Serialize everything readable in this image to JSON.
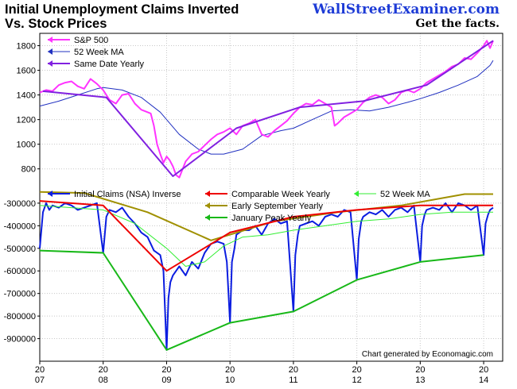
{
  "header": {
    "title_line1": "Initial Unemployment Claims Inverted",
    "title_line2": "Vs. Stock Prices",
    "brand": "WallStreetExaminer.com",
    "tagline": "Get the facts."
  },
  "footer": {
    "credit": "Chart generated by Economagic.com"
  },
  "x_ticks": [
    {
      "year": 2007,
      "top": "20",
      "bottom": "07"
    },
    {
      "year": 2008,
      "top": "20",
      "bottom": "08"
    },
    {
      "year": 2009,
      "top": "20",
      "bottom": "09"
    },
    {
      "year": 2010,
      "top": "20",
      "bottom": "10"
    },
    {
      "year": 2011,
      "top": "20",
      "bottom": "11"
    },
    {
      "year": 2012,
      "top": "20",
      "bottom": "12"
    },
    {
      "year": 2013,
      "top": "20",
      "bottom": "13"
    },
    {
      "year": 2014,
      "top": "20",
      "bottom": "14"
    }
  ],
  "chart_data": [
    {
      "type": "line",
      "ylim": [
        650,
        1900
      ],
      "xlim": [
        2007.0,
        2014.3
      ],
      "y_ticks": [
        "800",
        "1000",
        "1200",
        "1400",
        "1600",
        "1800"
      ],
      "y_tick_values": [
        800,
        1000,
        1200,
        1400,
        1600,
        1800
      ],
      "grid": true,
      "legend_position": "top-left",
      "series": [
        {
          "name": "S&P 500",
          "color": "#ff33ff",
          "x": [
            2007.0,
            2007.1,
            2007.2,
            2007.3,
            2007.4,
            2007.5,
            2007.6,
            2007.7,
            2007.8,
            2007.9,
            2008.0,
            2008.1,
            2008.2,
            2008.3,
            2008.4,
            2008.5,
            2008.6,
            2008.7,
            2008.75,
            2008.8,
            2008.85,
            2008.9,
            2008.95,
            2009.0,
            2009.05,
            2009.1,
            2009.15,
            2009.2,
            2009.3,
            2009.4,
            2009.5,
            2009.6,
            2009.7,
            2009.8,
            2009.9,
            2010.0,
            2010.1,
            2010.2,
            2010.3,
            2010.4,
            2010.5,
            2010.6,
            2010.7,
            2010.8,
            2010.9,
            2011.0,
            2011.1,
            2011.2,
            2011.3,
            2011.4,
            2011.5,
            2011.6,
            2011.65,
            2011.7,
            2011.8,
            2011.9,
            2012.0,
            2012.1,
            2012.2,
            2012.3,
            2012.4,
            2012.5,
            2012.6,
            2012.7,
            2012.8,
            2012.9,
            2013.0,
            2013.1,
            2013.2,
            2013.3,
            2013.4,
            2013.5,
            2013.6,
            2013.7,
            2013.8,
            2013.9,
            2014.0,
            2014.05,
            2014.1,
            2014.15
          ],
          "values": [
            1420,
            1440,
            1430,
            1480,
            1500,
            1510,
            1470,
            1450,
            1530,
            1490,
            1440,
            1360,
            1330,
            1400,
            1410,
            1330,
            1280,
            1260,
            1250,
            1150,
            1000,
            920,
            850,
            900,
            870,
            820,
            750,
            730,
            860,
            920,
            940,
            990,
            1040,
            1080,
            1100,
            1130,
            1080,
            1150,
            1170,
            1200,
            1080,
            1060,
            1110,
            1150,
            1190,
            1250,
            1300,
            1330,
            1320,
            1360,
            1330,
            1300,
            1150,
            1170,
            1220,
            1250,
            1280,
            1340,
            1380,
            1400,
            1380,
            1330,
            1360,
            1420,
            1440,
            1420,
            1450,
            1500,
            1530,
            1560,
            1590,
            1630,
            1650,
            1700,
            1690,
            1740,
            1800,
            1840,
            1780,
            1840
          ]
        },
        {
          "name": "52 Week MA",
          "color": "#2030c0",
          "x": [
            2007.0,
            2007.3,
            2007.6,
            2007.9,
            2008.0,
            2008.3,
            2008.6,
            2008.9,
            2009.2,
            2009.5,
            2009.7,
            2009.9,
            2010.2,
            2010.5,
            2010.8,
            2011.0,
            2011.3,
            2011.6,
            2011.9,
            2012.2,
            2012.5,
            2012.8,
            2013.0,
            2013.3,
            2013.6,
            2013.9,
            2014.1,
            2014.15
          ],
          "values": [
            1310,
            1350,
            1400,
            1450,
            1460,
            1440,
            1380,
            1260,
            1080,
            960,
            920,
            920,
            960,
            1070,
            1110,
            1130,
            1200,
            1270,
            1280,
            1270,
            1300,
            1340,
            1370,
            1420,
            1480,
            1550,
            1640,
            1680
          ]
        },
        {
          "name": "Same Date Yearly",
          "color": "#8020e0",
          "x": [
            2007.05,
            2008.05,
            2009.1,
            2010.1,
            2011.1,
            2012.1,
            2013.1,
            2014.15
          ],
          "values": [
            1430,
            1380,
            740,
            1130,
            1300,
            1350,
            1480,
            1840
          ]
        }
      ]
    },
    {
      "type": "line",
      "ylim": [
        -1000000,
        -230000
      ],
      "xlim": [
        2007.0,
        2014.3
      ],
      "y_ticks": [
        "-300000",
        "-400000",
        "-500000",
        "-600000",
        "-700000",
        "-800000",
        "-900000"
      ],
      "y_tick_values": [
        -300000,
        -400000,
        -500000,
        -600000,
        -700000,
        -800000,
        -900000
      ],
      "grid": true,
      "legend_position": "top",
      "series": [
        {
          "name": "Initial Claims (NSA) Inverse",
          "color": "#0b1de0",
          "x": [
            2007.0,
            2007.05,
            2007.1,
            2007.15,
            2007.2,
            2007.3,
            2007.4,
            2007.5,
            2007.6,
            2007.7,
            2007.8,
            2007.9,
            2008.0,
            2008.05,
            2008.1,
            2008.2,
            2008.3,
            2008.4,
            2008.5,
            2008.6,
            2008.7,
            2008.8,
            2008.9,
            2008.95,
            2009.0,
            2009.03,
            2009.06,
            2009.1,
            2009.2,
            2009.3,
            2009.4,
            2009.5,
            2009.6,
            2009.7,
            2009.8,
            2009.9,
            2009.95,
            2010.0,
            2010.03,
            2010.07,
            2010.1,
            2010.2,
            2010.3,
            2010.4,
            2010.5,
            2010.6,
            2010.7,
            2010.8,
            2010.9,
            2011.0,
            2011.03,
            2011.07,
            2011.1,
            2011.2,
            2011.3,
            2011.4,
            2011.5,
            2011.6,
            2011.7,
            2011.8,
            2011.9,
            2012.0,
            2012.03,
            2012.07,
            2012.1,
            2012.2,
            2012.3,
            2012.4,
            2012.5,
            2012.6,
            2012.7,
            2012.8,
            2012.9,
            2013.0,
            2013.03,
            2013.07,
            2013.1,
            2013.2,
            2013.3,
            2013.4,
            2013.5,
            2013.6,
            2013.7,
            2013.8,
            2013.9,
            2014.0,
            2014.03,
            2014.07,
            2014.1,
            2014.15
          ],
          "values": [
            -500000,
            -340000,
            -300000,
            -330000,
            -310000,
            -320000,
            -300000,
            -310000,
            -330000,
            -320000,
            -310000,
            -300000,
            -520000,
            -360000,
            -330000,
            -340000,
            -320000,
            -360000,
            -390000,
            -430000,
            -450000,
            -510000,
            -530000,
            -600000,
            -950000,
            -720000,
            -650000,
            -620000,
            -580000,
            -620000,
            -560000,
            -590000,
            -520000,
            -480000,
            -470000,
            -480000,
            -560000,
            -830000,
            -560000,
            -500000,
            -440000,
            -420000,
            -420000,
            -400000,
            -440000,
            -390000,
            -370000,
            -390000,
            -380000,
            -780000,
            -530000,
            -440000,
            -400000,
            -390000,
            -380000,
            -400000,
            -360000,
            -350000,
            -360000,
            -330000,
            -340000,
            -640000,
            -460000,
            -380000,
            -360000,
            -340000,
            -350000,
            -330000,
            -360000,
            -330000,
            -320000,
            -340000,
            -310000,
            -560000,
            -400000,
            -350000,
            -330000,
            -320000,
            -330000,
            -300000,
            -340000,
            -300000,
            -310000,
            -330000,
            -310000,
            -530000,
            -390000,
            -350000,
            -330000,
            -320000
          ]
        },
        {
          "name": "Comparable Week Yearly",
          "color": "#ee0000",
          "x": [
            2007.0,
            2008.0,
            2009.0,
            2010.0,
            2011.0,
            2012.0,
            2013.0,
            2014.0,
            2014.15
          ],
          "values": [
            -290000,
            -310000,
            -600000,
            -430000,
            -360000,
            -330000,
            -310000,
            -310000,
            -310000
          ]
        },
        {
          "name": "52 Week MA",
          "color": "#33ee33",
          "x": [
            2007.0,
            2007.5,
            2008.0,
            2008.5,
            2009.0,
            2009.3,
            2009.6,
            2009.9,
            2010.2,
            2010.6,
            2011.0,
            2011.5,
            2012.0,
            2012.5,
            2013.0,
            2013.5,
            2014.0,
            2014.15
          ],
          "values": [
            -310000,
            -320000,
            -330000,
            -390000,
            -500000,
            -580000,
            -560000,
            -490000,
            -450000,
            -440000,
            -420000,
            -400000,
            -380000,
            -370000,
            -350000,
            -340000,
            -340000,
            -340000
          ]
        },
        {
          "name": "Early September Yearly",
          "color": "#a09000",
          "x": [
            2007.0,
            2007.7,
            2008.7,
            2009.7,
            2010.7,
            2011.7,
            2012.7,
            2013.7,
            2014.15
          ],
          "values": [
            -250000,
            -255000,
            -340000,
            -465000,
            -380000,
            -340000,
            -310000,
            -260000,
            -260000
          ]
        },
        {
          "name": "January Peak Yearly",
          "color": "#18b818",
          "x": [
            2007.0,
            2008.0,
            2009.0,
            2010.0,
            2011.0,
            2012.0,
            2013.0,
            2014.0
          ],
          "values": [
            -510000,
            -520000,
            -950000,
            -830000,
            -780000,
            -640000,
            -560000,
            -530000
          ]
        }
      ]
    }
  ]
}
